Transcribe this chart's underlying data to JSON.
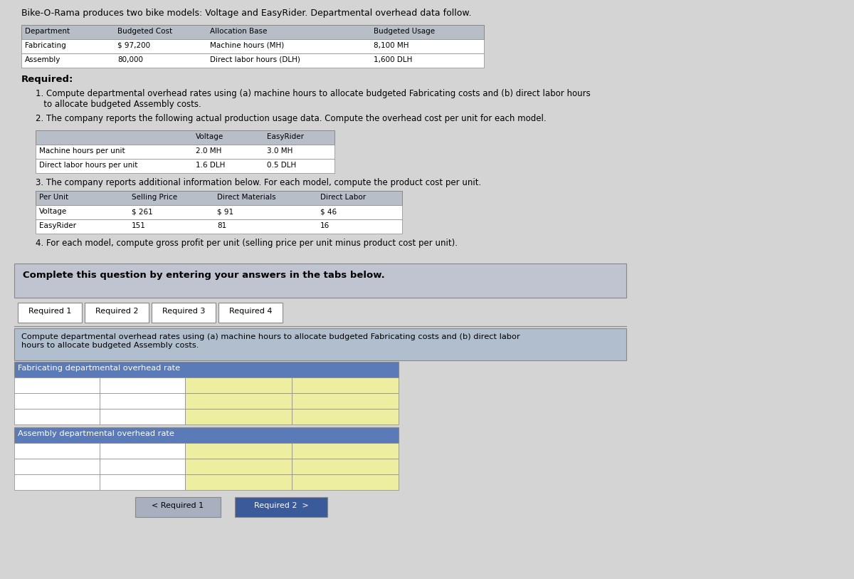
{
  "bg_color": "#d4d4d4",
  "content_bg": "#e8e8e8",
  "white": "#ffffff",
  "title_text": "Bike-O-Rama produces two bike models: Voltage and EasyRider. Departmental overhead data follow.",
  "table1_headers": [
    "Department",
    "Budgeted Cost",
    "Allocation Base",
    "Budgeted Usage"
  ],
  "table1_rows": [
    [
      "Fabricating",
      "$ 97,200",
      "Machine hours (MH)",
      "8,100 MH"
    ],
    [
      "Assembly",
      "80,000",
      "Direct labor hours (DLH)",
      "1,600 DLH"
    ]
  ],
  "required_label": "Required:",
  "req1_text": "1. Compute departmental overhead rates using (a) machine hours to allocate budgeted Fabricating costs and (b) direct labor hours\n   to allocate budgeted Assembly costs.",
  "req2_text": "2. The company reports the following actual production usage data. Compute the overhead cost per unit for each model.",
  "table2_headers": [
    "",
    "Voltage",
    "EasyRider"
  ],
  "table2_rows": [
    [
      "Machine hours per unit",
      "2.0 MH",
      "3.0 MH"
    ],
    [
      "Direct labor hours per unit",
      "1.6 DLH",
      "0.5 DLH"
    ]
  ],
  "req3_text": "3. The company reports additional information below. For each model, compute the product cost per unit.",
  "table3_headers": [
    "Per Unit",
    "Selling Price",
    "Direct Materials",
    "Direct Labor"
  ],
  "table3_rows": [
    [
      "Voltage",
      "$ 261",
      "$ 91",
      "$ 46"
    ],
    [
      "EasyRider",
      "151",
      "81",
      "16"
    ]
  ],
  "req4_text": "4. For each model, compute gross profit per unit (selling price per unit minus product cost per unit).",
  "complete_text": "Complete this question by entering your answers in the tabs below.",
  "tabs": [
    "Required 1",
    "Required 2",
    "Required 3",
    "Required 4"
  ],
  "tab_instruction": "Compute departmental overhead rates using (a) machine hours to allocate budgeted Fabricating costs and (b) direct labor\nhours to allocate budgeted Assembly costs.",
  "fab_label": "Fabricating departmental overhead rate",
  "asm_label": "Assembly departmental overhead rate",
  "btn1_text": "< Required 1",
  "btn2_text": "Required 2  >",
  "table_header_color": "#b8bec8",
  "tab_active_color": "#3a5a9a",
  "section_bg": "#c8ccd6",
  "yellow_cell": "#eeeea0",
  "blue_header_color": "#5a7ab8",
  "instruction_bg": "#b0bece",
  "tab_border_color": "#888888",
  "complete_box_bg": "#c0c4d0",
  "outer_border": "#888888"
}
